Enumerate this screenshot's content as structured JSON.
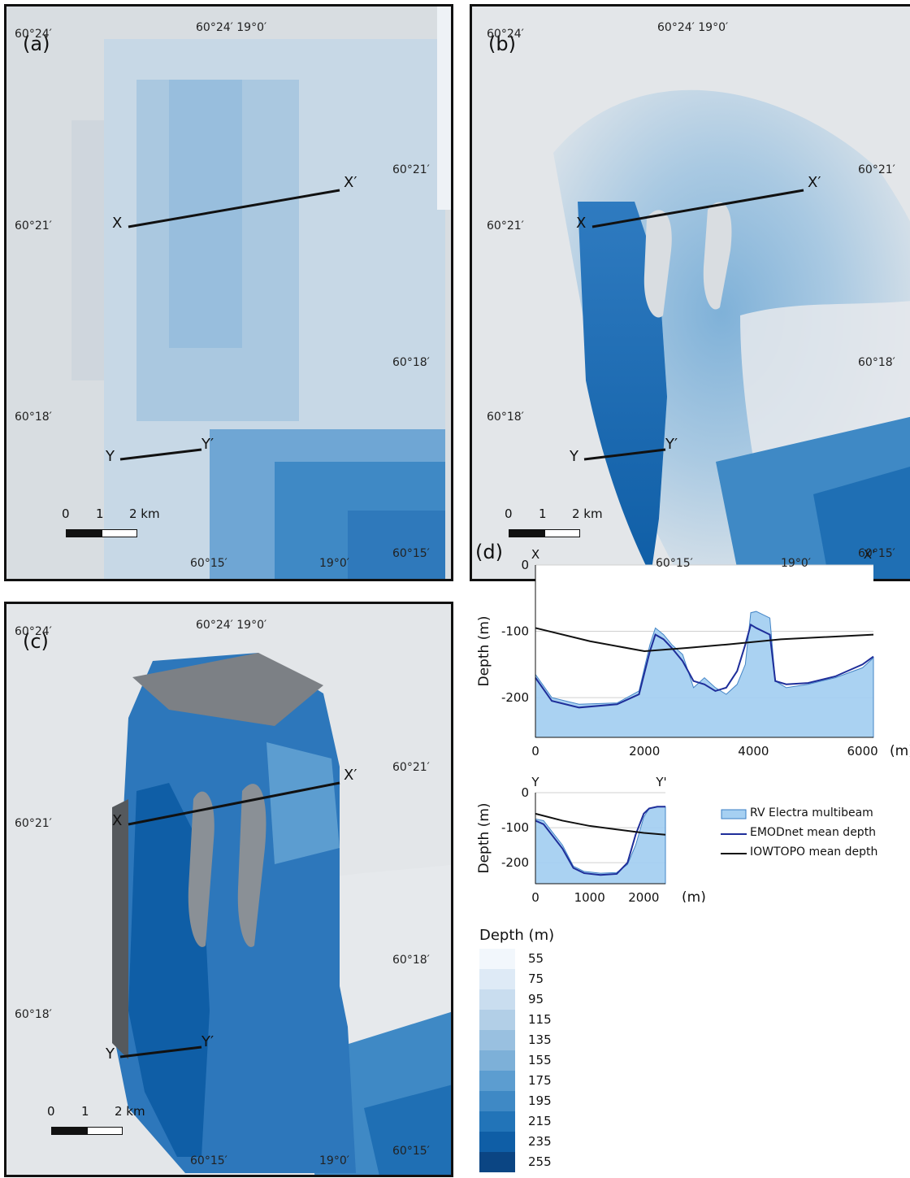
{
  "panels": {
    "a": {
      "label": "(a)"
    },
    "b": {
      "label": "(b)"
    },
    "c": {
      "label": "(c)"
    }
  },
  "coords": {
    "lat_top": "60°24′",
    "lon_top": "60°24′ 19°0′",
    "lat_mid_right": "60°21′",
    "lat_mid_left": "60°21′",
    "lat_lower_right": "60°18′",
    "lat_lower_left": "60°18′",
    "lat_bottom_right": "60°15′",
    "lon_bottom_left": "60°15′",
    "lon_bottom_right": "19°0′"
  },
  "profile_labels": {
    "x": "X",
    "x_prime": "X′",
    "y": "Y",
    "y_prime": "Y′"
  },
  "scalebar": {
    "zero": "0",
    "one": "1",
    "two": "2 km"
  },
  "panel_d": {
    "label": "(d)",
    "chart_data": [
      {
        "type": "area",
        "start_label": "X",
        "end_label": "X'",
        "ylabel": "Depth (m)",
        "xunit": "(m)",
        "xlim": [
          0,
          6200
        ],
        "ylim": [
          -260,
          0
        ],
        "xticks": [
          "0",
          "2000",
          "4000",
          "6000"
        ],
        "yticks": [
          "0",
          "-100",
          "-200"
        ],
        "series": [
          {
            "name": "RV Electra multibeam",
            "x": [
              0,
              300,
              800,
              1500,
              1900,
              2100,
              2200,
              2350,
              2500,
              2700,
              2900,
              3100,
              3300,
              3500,
              3700,
              3850,
              3950,
              4050,
              4300,
              4400,
              4600,
              5000,
              5500,
              6000,
              6200
            ],
            "y": [
              -165,
              -200,
              -210,
              -208,
              -190,
              -120,
              -95,
              -105,
              -120,
              -135,
              -185,
              -170,
              -185,
              -195,
              -180,
              -150,
              -72,
              -70,
              -80,
              -175,
              -185,
              -180,
              -170,
              -155,
              -140
            ]
          },
          {
            "name": "EMODnet mean depth",
            "x": [
              0,
              300,
              800,
              1500,
              1900,
              2100,
              2200,
              2350,
              2500,
              2700,
              2900,
              3100,
              3300,
              3500,
              3700,
              3850,
              3950,
              4050,
              4300,
              4400,
              4600,
              5000,
              5500,
              6000,
              6200
            ],
            "y": [
              -170,
              -205,
              -215,
              -210,
              -195,
              -130,
              -105,
              -112,
              -125,
              -145,
              -175,
              -180,
              -190,
              -185,
              -160,
              -120,
              -90,
              -95,
              -105,
              -175,
              -180,
              -178,
              -168,
              -150,
              -138
            ]
          },
          {
            "name": "IOWTOPO mean depth",
            "x": [
              0,
              1000,
              2000,
              2800,
              3500,
              4500,
              6200
            ],
            "y": [
              -95,
              -115,
              -130,
              -125,
              -120,
              -112,
              -105
            ]
          }
        ]
      },
      {
        "type": "area",
        "start_label": "Y",
        "end_label": "Y'",
        "ylabel": "Depth (m)",
        "xunit": "(m)",
        "xlim": [
          0,
          2400
        ],
        "ylim": [
          -260,
          0
        ],
        "xticks": [
          "0",
          "1000",
          "2000"
        ],
        "yticks": [
          "0",
          "-100",
          "-200"
        ],
        "series": [
          {
            "name": "RV Electra multibeam",
            "x": [
              0,
              150,
              300,
              500,
              700,
              900,
              1200,
              1500,
              1700,
              1850,
              2000,
              2100,
              2250,
              2400
            ],
            "y": [
              -75,
              -80,
              -110,
              -150,
              -210,
              -225,
              -230,
              -228,
              -205,
              -150,
              -70,
              -45,
              -40,
              -40
            ]
          },
          {
            "name": "EMODnet mean depth",
            "x": [
              0,
              150,
              300,
              500,
              700,
              900,
              1200,
              1500,
              1700,
              1850,
              2000,
              2100,
              2250,
              2400
            ],
            "y": [
              -80,
              -90,
              -120,
              -160,
              -215,
              -230,
              -235,
              -232,
              -200,
              -120,
              -60,
              -45,
              -40,
              -40
            ]
          },
          {
            "name": "IOWTOPO mean depth",
            "x": [
              0,
              500,
              1000,
              1500,
              2000,
              2400
            ],
            "y": [
              -60,
              -80,
              -95,
              -105,
              -115,
              -120
            ]
          }
        ]
      }
    ]
  },
  "legend": {
    "items": [
      {
        "label": "RV Electra multibeam",
        "color": "#a6d0f2",
        "stroke": "#3b7fc4"
      },
      {
        "label": "EMODnet mean depth",
        "color": "#1e2e9a"
      },
      {
        "label": "IOWTOPO mean depth",
        "color": "#111111"
      }
    ]
  },
  "colorbar": {
    "title": "Depth (m)",
    "entries": [
      {
        "label": "55",
        "color": "#f2f7fc"
      },
      {
        "label": "75",
        "color": "#deeaf6"
      },
      {
        "label": "95",
        "color": "#c9ddef"
      },
      {
        "label": "115",
        "color": "#b2cfe7"
      },
      {
        "label": "135",
        "color": "#99c0e0"
      },
      {
        "label": "155",
        "color": "#7db0d8"
      },
      {
        "label": "175",
        "color": "#5c9dd0"
      },
      {
        "label": "195",
        "color": "#3f89c5"
      },
      {
        "label": "215",
        "color": "#2274b8"
      },
      {
        "label": "235",
        "color": "#0f5ea6"
      },
      {
        "label": "255",
        "color": "#0b4583"
      }
    ]
  }
}
